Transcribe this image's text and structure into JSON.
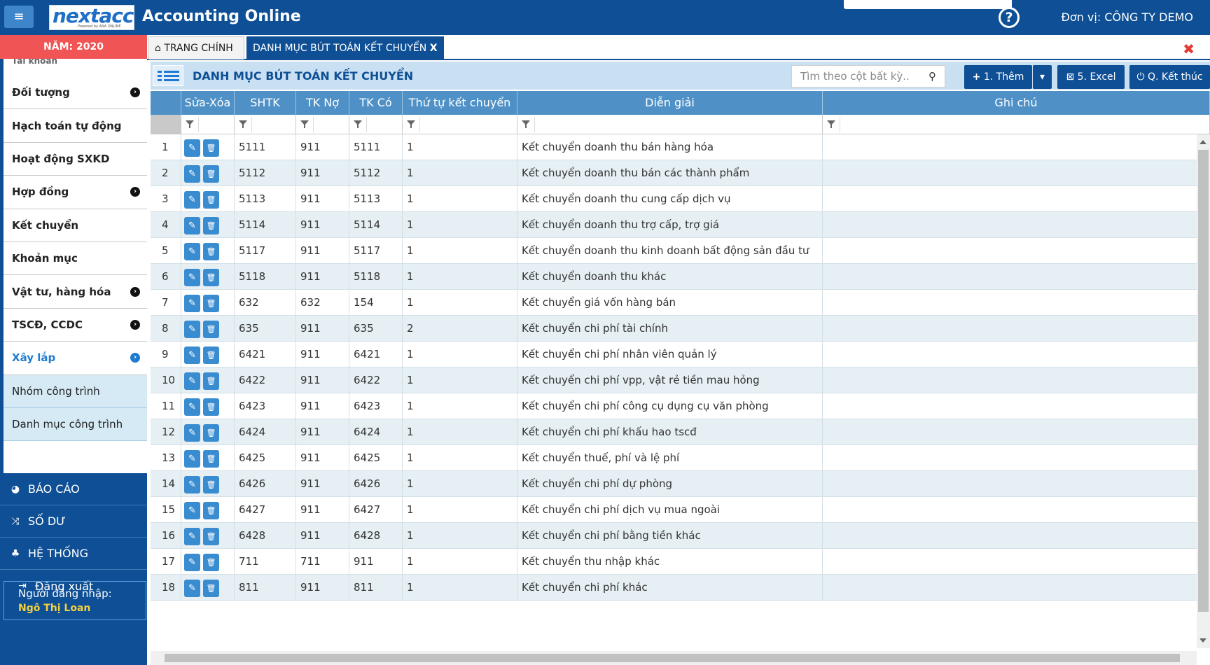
{
  "app": {
    "logo_text": "nextacc",
    "logo_sub": "Powered by ANA ONLINE",
    "title": "Accounting Online",
    "unit": "Đơn vị: CÔNG TY DEMO",
    "menu_glyph": "≡",
    "help_glyph": "?"
  },
  "sidebar": {
    "year": "NĂM: 2020",
    "peek_item": "Tài khoản",
    "items": [
      {
        "label": "Đối tượng",
        "arrow": true
      },
      {
        "label": "Hạch toán tự động",
        "arrow": false
      },
      {
        "label": "Hoạt động SXKD",
        "arrow": false
      },
      {
        "label": "Hợp đồng",
        "arrow": true
      },
      {
        "label": "Kết chuyển",
        "arrow": false
      },
      {
        "label": "Khoản mục",
        "arrow": false
      },
      {
        "label": "Vật tư, hàng hóa",
        "arrow": true
      },
      {
        "label": "TSCĐ, CCDC",
        "arrow": true
      },
      {
        "label": "Xây lắp",
        "arrow": true,
        "active": true
      }
    ],
    "children": [
      "Nhóm công trình",
      "Danh mục công trình"
    ],
    "main": [
      {
        "label": "BÁO CÁO",
        "icon": "pie-chart-icon"
      },
      {
        "label": "SỐ DƯ",
        "icon": "shuffle-icon"
      },
      {
        "label": "HỆ THỐNG",
        "icon": "sitemap-icon"
      },
      {
        "label": "Đăng xuất",
        "icon": "sign-out-icon"
      }
    ],
    "login_label": "Người đăng nhập:",
    "login_user": "Ngô Thị Loan"
  },
  "tabs": {
    "home": "TRANG CHÍNH",
    "active": "DANH MỤC BÚT TOÁN KẾT CHUYỂN",
    "active_close": "X",
    "close_all": "✖"
  },
  "panel": {
    "title": "DANH MỤC BÚT TOÁN KẾT CHUYỂN",
    "search_placeholder": "Tìm theo cột bất kỳ..",
    "btn_add": "1. Thêm",
    "btn_excel": "5. Excel",
    "btn_end": "Q. Kết thúc"
  },
  "columns": [
    "Sửa-Xóa",
    "SHTK",
    "TK Nợ",
    "TK Có",
    "Thứ tự kết chuyển",
    "Diễn giải",
    "Ghi chú"
  ],
  "rows": [
    {
      "no": "1",
      "shtk": "5111",
      "no_acc": "911",
      "co_acc": "5111",
      "order": "1",
      "desc": "Kết chuyển doanh thu bán hàng hóa",
      "note": ""
    },
    {
      "no": "2",
      "shtk": "5112",
      "no_acc": "911",
      "co_acc": "5112",
      "order": "1",
      "desc": "Kết chuyển doanh thu bán các thành phẩm",
      "note": ""
    },
    {
      "no": "3",
      "shtk": "5113",
      "no_acc": "911",
      "co_acc": "5113",
      "order": "1",
      "desc": "Kết chuyển doanh thu cung cấp dịch vụ",
      "note": ""
    },
    {
      "no": "4",
      "shtk": "5114",
      "no_acc": "911",
      "co_acc": "5114",
      "order": "1",
      "desc": "Kết chuyển doanh thu trợ cấp, trợ giá",
      "note": ""
    },
    {
      "no": "5",
      "shtk": "5117",
      "no_acc": "911",
      "co_acc": "5117",
      "order": "1",
      "desc": "Kết chuyển doanh thu kinh doanh bất động sản đầu tư",
      "note": ""
    },
    {
      "no": "6",
      "shtk": "5118",
      "no_acc": "911",
      "co_acc": "5118",
      "order": "1",
      "desc": "Kết chuyển doanh thu khác",
      "note": ""
    },
    {
      "no": "7",
      "shtk": "632",
      "no_acc": "632",
      "co_acc": "154",
      "order": "1",
      "desc": "Kết chuyển giá vốn hàng bán",
      "note": ""
    },
    {
      "no": "8",
      "shtk": "635",
      "no_acc": "911",
      "co_acc": "635",
      "order": "2",
      "desc": "Kết chuyển chi phí tài chính",
      "note": ""
    },
    {
      "no": "9",
      "shtk": "6421",
      "no_acc": "911",
      "co_acc": "6421",
      "order": "1",
      "desc": "Kết chuyển chi phí nhân viên quản lý",
      "note": ""
    },
    {
      "no": "10",
      "shtk": "6422",
      "no_acc": "911",
      "co_acc": "6422",
      "order": "1",
      "desc": "Kết chuyển chi phí vpp, vật rẻ tiền mau hỏng",
      "note": ""
    },
    {
      "no": "11",
      "shtk": "6423",
      "no_acc": "911",
      "co_acc": "6423",
      "order": "1",
      "desc": "Kết chuyển chi phí công cụ dụng cụ văn phòng",
      "note": ""
    },
    {
      "no": "12",
      "shtk": "6424",
      "no_acc": "911",
      "co_acc": "6424",
      "order": "1",
      "desc": "Kết chuyển chi phí khấu hao tscđ",
      "note": ""
    },
    {
      "no": "13",
      "shtk": "6425",
      "no_acc": "911",
      "co_acc": "6425",
      "order": "1",
      "desc": "Kết chuyển thuế, phí và lệ phí",
      "note": ""
    },
    {
      "no": "14",
      "shtk": "6426",
      "no_acc": "911",
      "co_acc": "6426",
      "order": "1",
      "desc": "Kết chuyển chi phí dự phòng",
      "note": ""
    },
    {
      "no": "15",
      "shtk": "6427",
      "no_acc": "911",
      "co_acc": "6427",
      "order": "1",
      "desc": "Kết chuyển chi phí dịch vụ mua ngoài",
      "note": ""
    },
    {
      "no": "16",
      "shtk": "6428",
      "no_acc": "911",
      "co_acc": "6428",
      "order": "1",
      "desc": "Kết chuyển chi phí bằng tiền khác",
      "note": ""
    },
    {
      "no": "17",
      "shtk": "711",
      "no_acc": "711",
      "co_acc": "911",
      "order": "1",
      "desc": "Kết chuyển thu nhập khác",
      "note": ""
    },
    {
      "no": "18",
      "shtk": "811",
      "no_acc": "911",
      "co_acc": "811",
      "order": "1",
      "desc": "Kết chuyển chi phí khác",
      "note": ""
    }
  ],
  "colors": {
    "primary": "#0e4f95",
    "grid_header": "#4f91c7",
    "year_bar": "#f05454",
    "row_alt": "#e5eff4"
  }
}
